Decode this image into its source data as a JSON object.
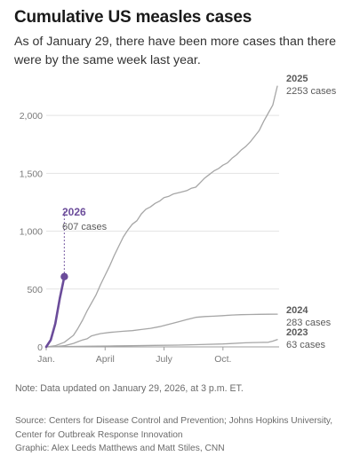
{
  "header": {
    "title": "Cumulative US measles cases",
    "subtitle": "As of January 29, there have been more cases than there were by the same week last year."
  },
  "footer": {
    "note": "Note: Data updated on January 29, 2026, at 3 p.m. ET.",
    "source_line1": "Source: Centers for Disease Control and Prevention; Johns Hopkins University,",
    "source_line2": "Center for Outbreak Response Innovation",
    "graphic": "Graphic: Alex Leeds Matthews and Matt Stiles, CNN"
  },
  "colors": {
    "highlight": "#6b4c9a",
    "series": "#a6a6a6",
    "axis": "#9e9e9e",
    "grid": "#e3e3e3",
    "text": "#262626",
    "muted": "#6b6b6b"
  },
  "chart_data": {
    "type": "line",
    "xlabel": "",
    "ylabel": "",
    "ylim": [
      0,
      2300
    ],
    "xlim": [
      1,
      52
    ],
    "y_ticks": [
      0,
      500,
      1000,
      1500,
      2000
    ],
    "y_tick_labels": [
      "0",
      "500",
      "1,000",
      "1,500",
      "2,000"
    ],
    "x_ticks": [
      1,
      14,
      27,
      40
    ],
    "x_tick_labels": [
      "Jan.",
      "April",
      "July",
      "Oct."
    ],
    "grid": "horizontal",
    "series": [
      {
        "name": "2025",
        "annotation": "2253 cases",
        "highlight": false,
        "x": [
          1,
          3,
          5,
          7,
          8,
          9,
          10,
          11,
          12,
          13,
          14,
          15,
          16,
          17,
          18,
          19,
          20,
          21,
          22,
          23,
          24,
          25,
          26,
          27,
          28,
          29,
          30,
          31,
          32,
          33,
          34,
          35,
          36,
          37,
          38,
          39,
          40,
          41,
          42,
          43,
          44,
          45,
          46,
          47,
          48,
          49,
          50,
          51,
          52
        ],
        "values": [
          0,
          10,
          40,
          100,
          160,
          230,
          310,
          380,
          450,
          540,
          620,
          700,
          790,
          870,
          950,
          1010,
          1060,
          1090,
          1150,
          1190,
          1210,
          1240,
          1260,
          1290,
          1300,
          1320,
          1330,
          1340,
          1350,
          1370,
          1380,
          1420,
          1460,
          1490,
          1520,
          1540,
          1570,
          1590,
          1630,
          1660,
          1700,
          1730,
          1770,
          1820,
          1870,
          1950,
          2020,
          2090,
          2253
        ]
      },
      {
        "name": "2026",
        "annotation": "607 cases",
        "highlight": true,
        "x": [
          1,
          2,
          3,
          4,
          5
        ],
        "values": [
          0,
          60,
          200,
          420,
          607
        ]
      },
      {
        "name": "2024",
        "annotation": "283 cases",
        "highlight": false,
        "x": [
          1,
          3,
          5,
          7,
          8,
          9,
          10,
          11,
          12,
          13,
          15,
          18,
          20,
          22,
          24,
          26,
          28,
          30,
          32,
          34,
          36,
          38,
          40,
          42,
          44,
          46,
          48,
          50,
          52
        ],
        "values": [
          0,
          2,
          10,
          30,
          45,
          60,
          70,
          95,
          105,
          115,
          125,
          135,
          140,
          150,
          160,
          175,
          195,
          215,
          235,
          255,
          262,
          265,
          270,
          275,
          278,
          280,
          281,
          282,
          283
        ]
      },
      {
        "name": "2023",
        "annotation": "63 cases",
        "highlight": false,
        "x": [
          1,
          5,
          10,
          15,
          20,
          25,
          30,
          35,
          40,
          45,
          48,
          50,
          51,
          52
        ],
        "values": [
          0,
          2,
          5,
          8,
          10,
          13,
          15,
          20,
          25,
          35,
          38,
          40,
          50,
          63
        ]
      }
    ]
  }
}
